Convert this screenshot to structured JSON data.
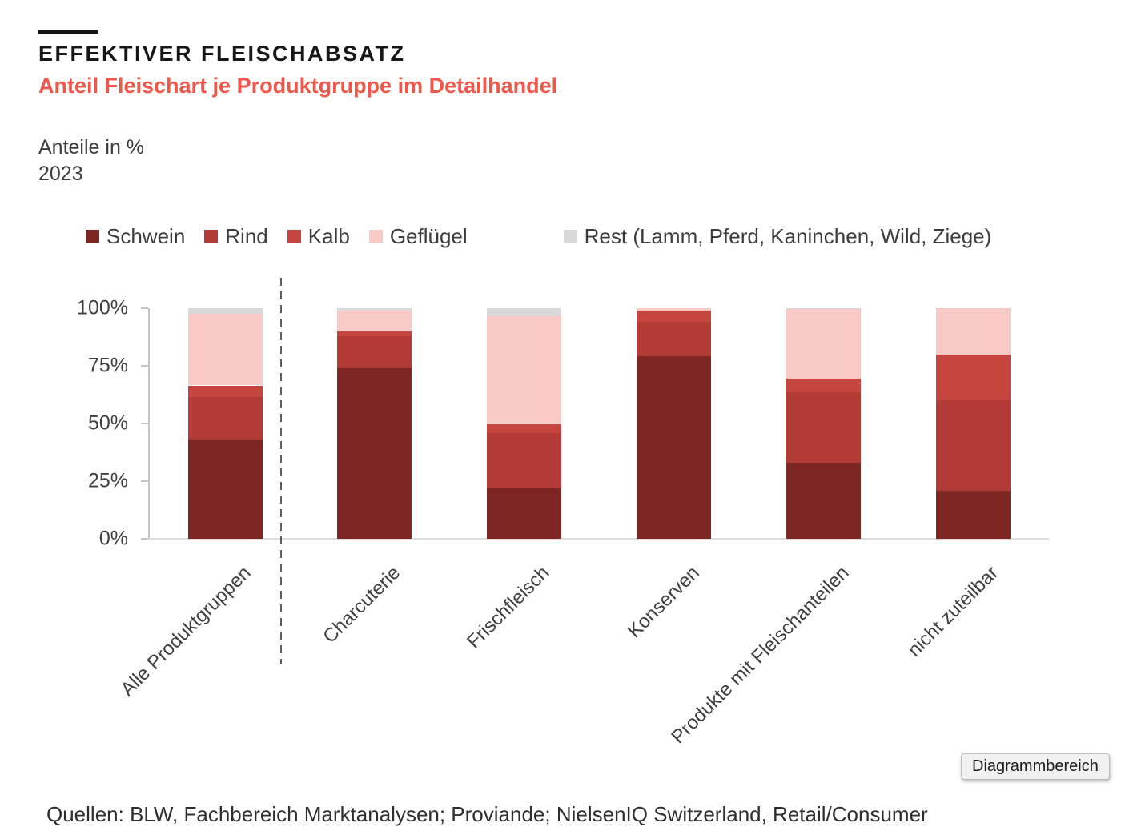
{
  "header": {
    "title": "EFFEKTIVER FLEISCHABSATZ",
    "subtitle": "Anteil Fleischart je Produktgruppe im Detailhandel",
    "unit_label": "Anteile in %",
    "year": "2023"
  },
  "chart_data": {
    "type": "bar",
    "stacked": true,
    "title": "Anteil Fleischart je Produktgruppe im Detailhandel",
    "unit": "Anteile in %",
    "year": "2023",
    "categories": [
      "Alle Produktgruppen",
      "Charcuterie",
      "Frischfleisch",
      "Konserven",
      "Produkte mit Fleischanteilen",
      "nicht zuteilbar"
    ],
    "series": [
      {
        "name": "Schwein",
        "color": "#7E2722",
        "values": [
          43,
          74,
          22,
          79,
          33,
          21
        ]
      },
      {
        "name": "Rind",
        "color": "#B23B36",
        "values": [
          18.5,
          14,
          24,
          15,
          30.5,
          39
        ]
      },
      {
        "name": "Kalb",
        "color": "#C6453F",
        "values": [
          5,
          2,
          3.5,
          5,
          6,
          20
        ]
      },
      {
        "name": "Geflügel",
        "color": "#F8C9C5",
        "values": [
          31,
          9,
          47,
          1,
          30,
          20
        ]
      },
      {
        "name": "Rest (Lamm, Pferd, Kaninchen, Wild, Ziege)",
        "color": "#D9D9D9",
        "values": [
          2.5,
          1,
          3.5,
          0,
          0.5,
          0
        ]
      }
    ],
    "ylim": [
      0,
      100
    ],
    "yticks": [
      {
        "value": 0,
        "label": "0%"
      },
      {
        "value": 25,
        "label": "25%"
      },
      {
        "value": 50,
        "label": "50%"
      },
      {
        "value": 75,
        "label": "75%"
      },
      {
        "value": 100,
        "label": "100%"
      }
    ],
    "gridlines": false,
    "legend_position": "top",
    "separator_after_first_category": true
  },
  "tooltip": {
    "label": "Diagrammbereich"
  },
  "footer": {
    "sources": "Quellen: BLW, Fachbereich Marktanalysen; Proviande; NielsenIQ Switzerland, Retail/Consumer"
  }
}
